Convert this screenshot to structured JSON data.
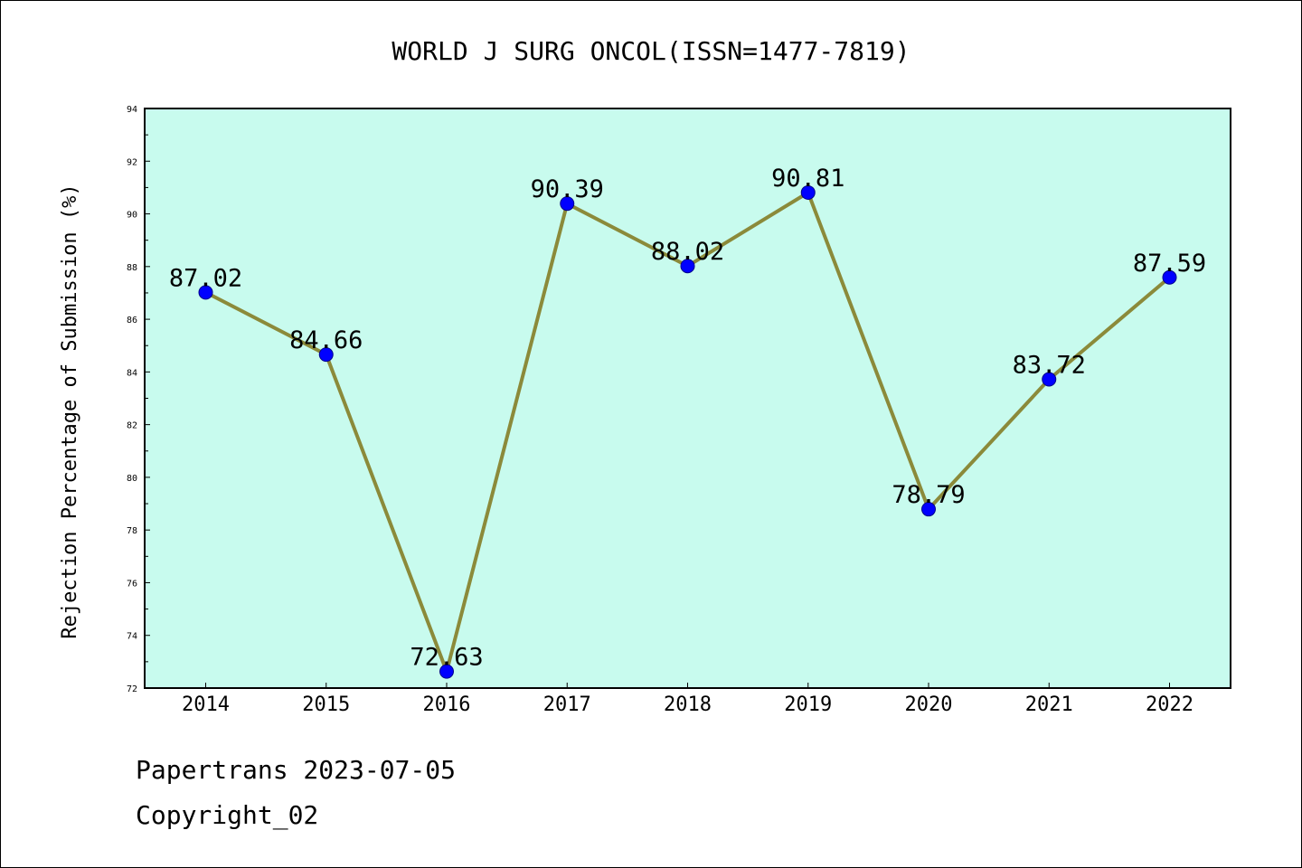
{
  "chart_data": {
    "type": "line",
    "title": "WORLD J SURG ONCOL(ISSN=1477-7819)",
    "xlabel": "",
    "ylabel": "Rejection Percentage of Submission (%)",
    "categories": [
      "2014",
      "2015",
      "2016",
      "2017",
      "2018",
      "2019",
      "2020",
      "2021",
      "2022"
    ],
    "series": [
      {
        "values": [
          87.02,
          84.66,
          72.63,
          90.39,
          88.02,
          90.81,
          78.79,
          83.72,
          87.59
        ]
      }
    ],
    "data_labels": [
      "87.02",
      "84.66",
      "72.63",
      "90.39",
      "88.02",
      "90.81",
      "78.79",
      "83.72",
      "87.59"
    ],
    "ylim": [
      72,
      94
    ],
    "yticks": [
      "72",
      "74",
      "76",
      "78",
      "80",
      "82",
      "84",
      "86",
      "88",
      "90",
      "92",
      "94"
    ],
    "grid": false,
    "colors": {
      "plot_background": "#c8fbee",
      "line": "#8b8a3a",
      "marker": "#0000ff"
    }
  },
  "footer": {
    "source": "Papertrans 2023-07-05",
    "copyright": "Copyright_02"
  }
}
